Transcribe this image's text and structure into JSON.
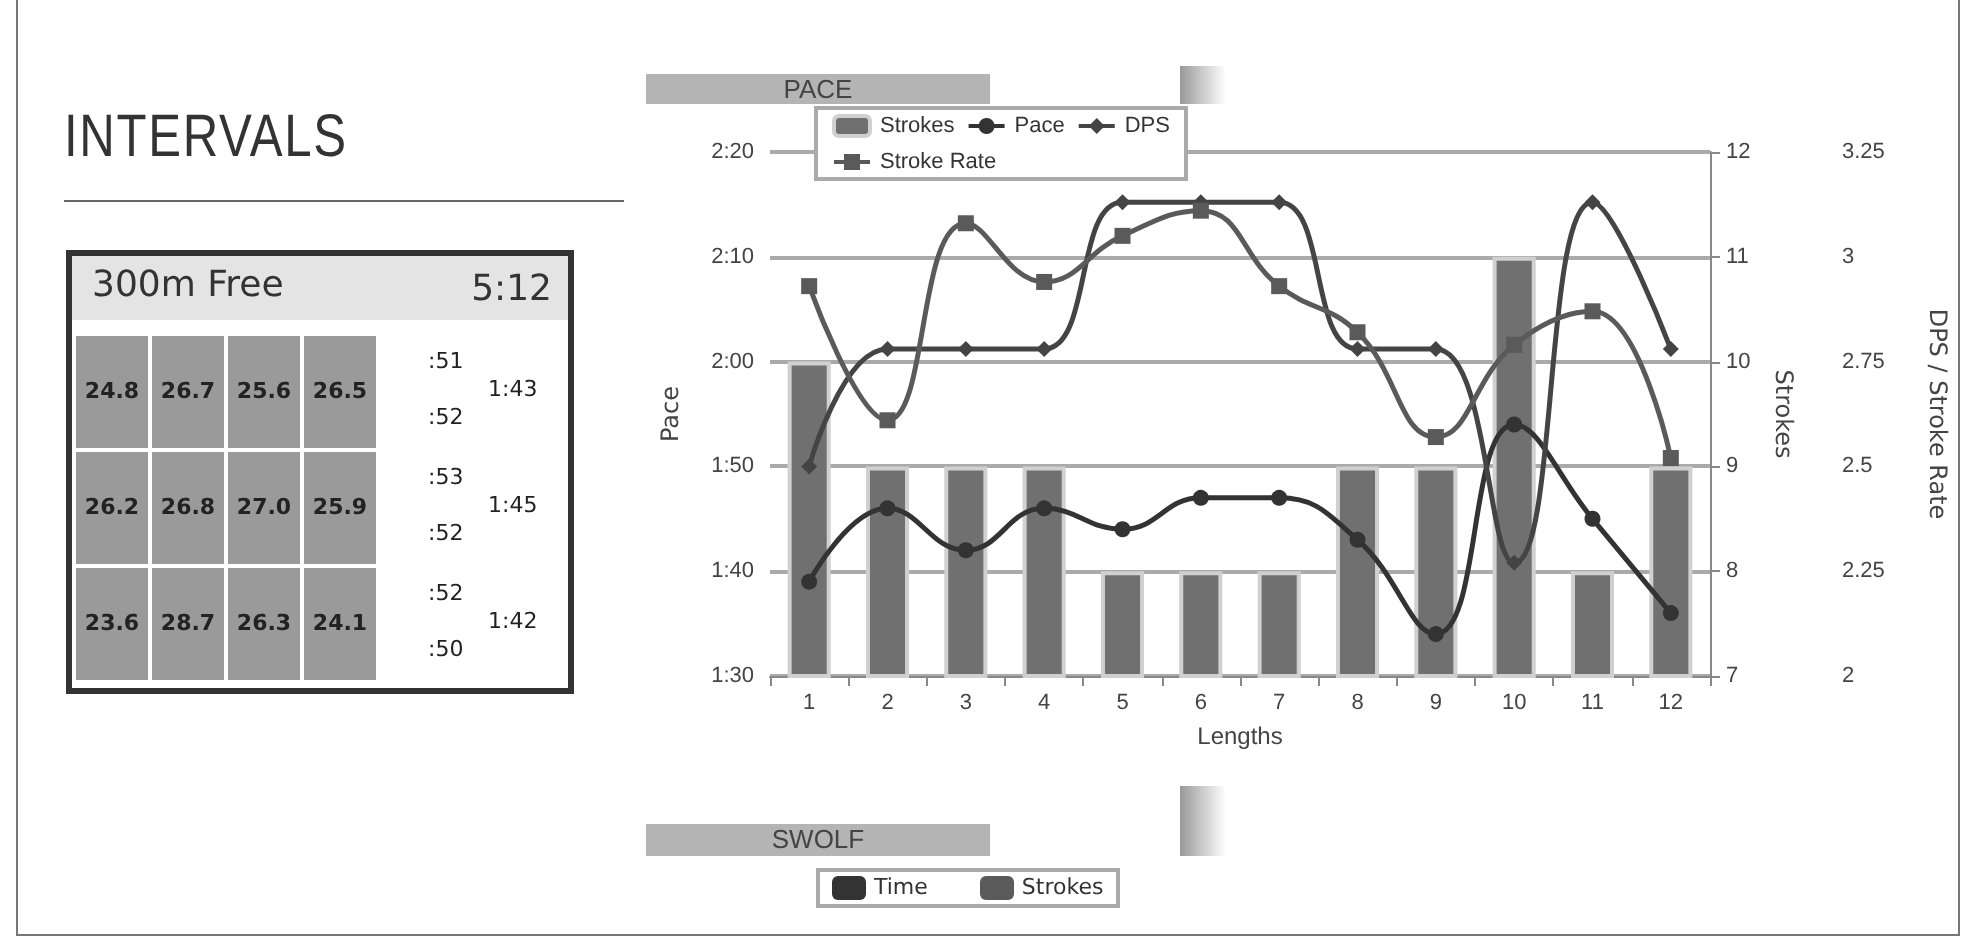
{
  "chart_data": [
    {
      "type": "other",
      "title": "INTERVALS",
      "subtitle": "300m Free",
      "annotations": [
        "5:12",
        "24.8",
        "26.7",
        "25.6",
        "26.5",
        ":51",
        ":52",
        "1:43",
        "26.2",
        "26.8",
        "27.0",
        "25.9",
        ":53",
        ":52",
        "1:45",
        "23.6",
        "28.7",
        "26.3",
        "24.1",
        ":52",
        ":50",
        "1:42"
      ]
    },
    {
      "type": "bar",
      "title": "PACE",
      "xlabel": "Lengths",
      "ylabel": "Pace",
      "y2label": "Strokes",
      "y3label": "DPS / Stroke Rate",
      "categories": [
        "1",
        "2",
        "3",
        "4",
        "5",
        "6",
        "7",
        "8",
        "9",
        "10",
        "11",
        "12"
      ],
      "ylim": [
        90,
        140
      ],
      "yticks": [
        {
          "value": 90,
          "label": "1:30"
        },
        {
          "value": 100,
          "label": "1:40"
        },
        {
          "value": 110,
          "label": "1:50"
        },
        {
          "value": 120,
          "label": "2:00"
        },
        {
          "value": 130,
          "label": "2:10"
        },
        {
          "value": 140,
          "label": "2:20"
        }
      ],
      "y2lim": [
        7,
        12
      ],
      "y2ticks": [
        7,
        8,
        9,
        10,
        11,
        12
      ],
      "y3lim": [
        2,
        3.25
      ],
      "y3ticks": [
        2,
        2.25,
        2.5,
        2.75,
        3,
        3.25
      ],
      "grid": "y",
      "legend": "top left",
      "series": [
        {
          "name": "Strokes",
          "type": "bar",
          "axis": "y2",
          "color": "#707070",
          "values": [
            10,
            9,
            9,
            9,
            8,
            8,
            8,
            9,
            9,
            11,
            8,
            9
          ]
        },
        {
          "name": "Pace",
          "type": "line",
          "axis": "y",
          "marker": "circle",
          "color": "#333333",
          "values": [
            99,
            106,
            102,
            106,
            104,
            107,
            107,
            103,
            94,
            114,
            105,
            96
          ]
        },
        {
          "name": "DPS",
          "type": "line",
          "axis": "y3",
          "marker": "diamond",
          "color": "#444444",
          "values": [
            2.5,
            2.78,
            2.78,
            2.78,
            3.13,
            3.13,
            3.13,
            2.78,
            2.78,
            2.27,
            3.13,
            2.78
          ]
        },
        {
          "name": "Stroke Rate",
          "type": "line",
          "axis": "y3",
          "marker": "square",
          "color": "#5a5a5a",
          "values": [
            2.93,
            2.61,
            3.08,
            2.94,
            3.05,
            3.11,
            2.93,
            2.82,
            2.57,
            2.79,
            2.87,
            2.52
          ]
        }
      ]
    },
    {
      "type": "other",
      "title": "SWOLF",
      "annotations": [
        "Time",
        "Strokes"
      ]
    }
  ]
}
